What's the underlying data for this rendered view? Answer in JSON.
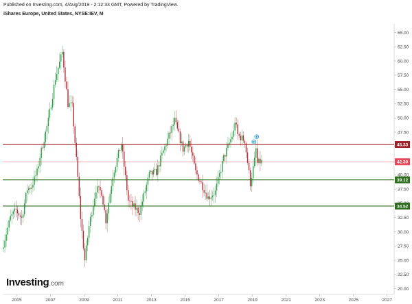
{
  "header": {
    "published": "Published on Investing.com, 4/Aug/2019 - 2:12:33 GMT, Powered by TradingView.",
    "title": "iShares Europe, United States, NYSE:IEV, M"
  },
  "logo": {
    "main": "Investing",
    "suffix": ".com"
  },
  "colors": {
    "up": "#2e9e46",
    "down": "#b0303a",
    "resistance": "#a01e25",
    "support": "#2e6e1e",
    "current": "#e8475a",
    "event_badge": "#34a3e0"
  },
  "chart_data": {
    "type": "candlestick",
    "title": "iShares Europe, United States, NYSE:IEV, M",
    "interval": "monthly",
    "xlim": [
      "2004-03",
      "2027-06"
    ],
    "ylim": [
      19.0,
      66.5
    ],
    "y_ticks": [
      "65.00",
      "62.50",
      "60.00",
      "57.50",
      "55.00",
      "52.50",
      "50.00",
      "47.50",
      "45.00",
      "42.50",
      "40.00",
      "37.50",
      "35.00",
      "32.50",
      "30.00",
      "27.50",
      "25.00",
      "22.50",
      "20.00"
    ],
    "x_ticks": [
      "2005",
      "2007",
      "2009",
      "2011",
      "2013",
      "2015",
      "2017",
      "2019",
      "2021",
      "2023",
      "2025",
      "2027"
    ],
    "horizontal_lines": [
      {
        "label": "45.33",
        "value": 45.33,
        "style": "resistance"
      },
      {
        "label": "42.30",
        "value": 42.3,
        "style": "current"
      },
      {
        "label": "39.12",
        "value": 39.12,
        "style": "support"
      },
      {
        "label": "34.52",
        "value": 34.52,
        "style": "support"
      }
    ],
    "events": [
      {
        "label": "D",
        "date": "2019-02",
        "value": 45.8
      },
      {
        "label": "D",
        "date": "2019-04",
        "value": 46.7
      }
    ],
    "price_path": [
      [
        "2004-03",
        27.0
      ],
      [
        "2004-09",
        32.5
      ],
      [
        "2005-01",
        33.8
      ],
      [
        "2005-05",
        32.4
      ],
      [
        "2005-09",
        37.5
      ],
      [
        "2005-12",
        38.0
      ],
      [
        "2006-04",
        40.5
      ],
      [
        "2006-06",
        43.2
      ],
      [
        "2006-12",
        49.5
      ],
      [
        "2007-05",
        57.0
      ],
      [
        "2007-10",
        61.5
      ],
      [
        "2008-02",
        52.5
      ],
      [
        "2008-05",
        52.0
      ],
      [
        "2008-09",
        39.5
      ],
      [
        "2008-11",
        32.5
      ],
      [
        "2009-02",
        25.0
      ],
      [
        "2009-05",
        31.0
      ],
      [
        "2009-10",
        37.5
      ],
      [
        "2010-02",
        37.0
      ],
      [
        "2010-05",
        32.0
      ],
      [
        "2010-10",
        40.0
      ],
      [
        "2011-04",
        45.5
      ],
      [
        "2011-09",
        35.5
      ],
      [
        "2011-12",
        34.5
      ],
      [
        "2012-05",
        33.5
      ],
      [
        "2012-12",
        40.0
      ],
      [
        "2013-05",
        40.5
      ],
      [
        "2013-09",
        43.5
      ],
      [
        "2014-06",
        49.5
      ],
      [
        "2014-12",
        44.5
      ],
      [
        "2015-04",
        46.0
      ],
      [
        "2015-09",
        40.5
      ],
      [
        "2016-02",
        38.0
      ],
      [
        "2016-06",
        36.0
      ],
      [
        "2016-11",
        37.0
      ],
      [
        "2017-05",
        43.0
      ],
      [
        "2017-12",
        47.5
      ],
      [
        "2018-01",
        49.5
      ],
      [
        "2018-03",
        47.0
      ],
      [
        "2018-08",
        46.0
      ],
      [
        "2018-12",
        38.5
      ],
      [
        "2019-03",
        42.5
      ],
      [
        "2019-04",
        44.5
      ],
      [
        "2019-05",
        42.0
      ],
      [
        "2019-07",
        42.3
      ]
    ]
  }
}
